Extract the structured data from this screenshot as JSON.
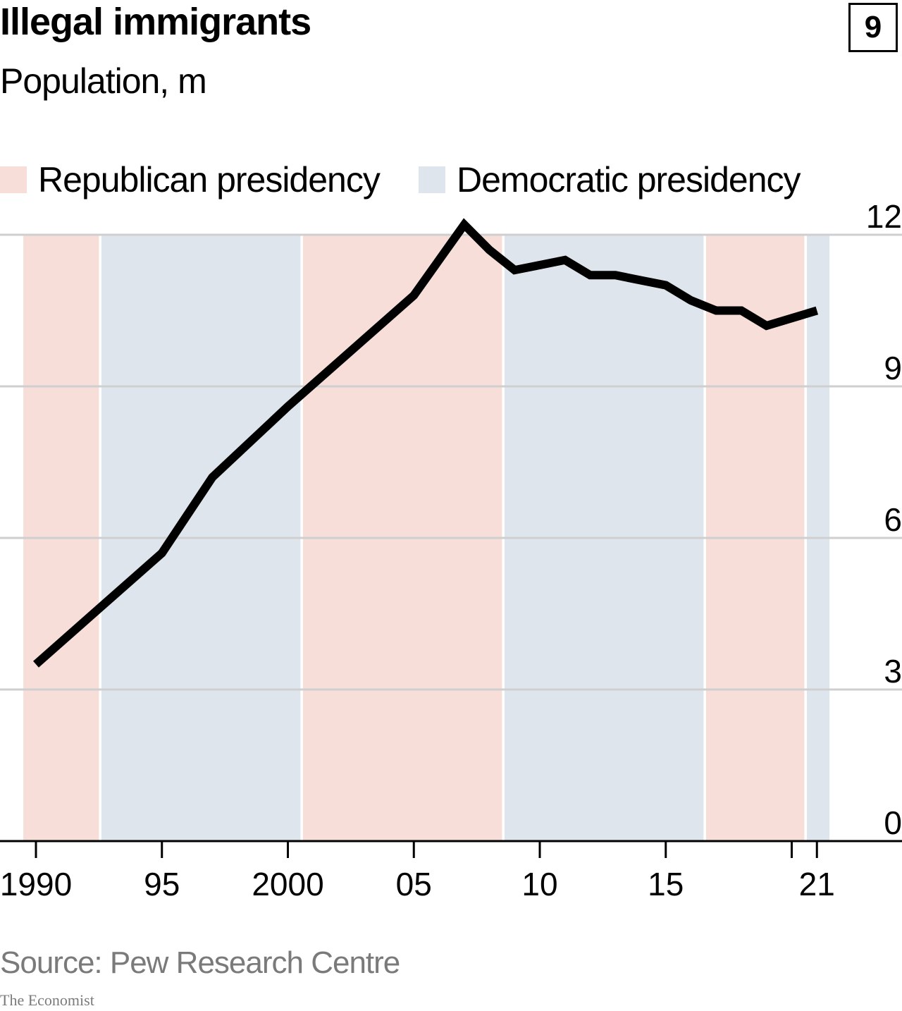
{
  "header": {
    "title": "Illegal immigrants",
    "subtitle": "Population, m",
    "badge": "9"
  },
  "legend": [
    {
      "label": "Republican presidency",
      "color": "#f8ded9"
    },
    {
      "label": "Democratic presidency",
      "color": "#dfe5ec"
    }
  ],
  "footer": {
    "source": "Source: Pew Research Centre",
    "brand": "The Economist"
  },
  "chart_data": {
    "type": "line",
    "title": "Illegal immigrants",
    "subtitle": "Population, m",
    "xlim": [
      1989.5,
      1992.4
    ],
    "x_range": [
      1989.5,
      2021.5
    ],
    "ylim": [
      0,
      12
    ],
    "y_ticks": [
      "0",
      "3",
      "6",
      "9",
      "12"
    ],
    "y_tick_values": [
      0,
      3,
      6,
      9,
      12
    ],
    "x_tick_values": [
      1990,
      1995,
      2000,
      2005,
      2010,
      2015,
      2021
    ],
    "x_tick_labels": [
      "1990",
      "95",
      "2000",
      "05",
      "10",
      "15",
      "21"
    ],
    "x_minor_ticks": [
      2020
    ],
    "grid": true,
    "legend_position": "top-left",
    "line_color": "#000000",
    "presidencies": [
      {
        "party": "Republican",
        "start": 1989.5,
        "end": 1992.5
      },
      {
        "party": "Democratic",
        "start": 1992.6,
        "end": 2000.5
      },
      {
        "party": "Republican",
        "start": 2000.6,
        "end": 2008.5
      },
      {
        "party": "Democratic",
        "start": 2008.6,
        "end": 2016.5
      },
      {
        "party": "Republican",
        "start": 2016.6,
        "end": 2020.5
      },
      {
        "party": "Democratic",
        "start": 2020.6,
        "end": 2021.5
      }
    ],
    "series": [
      {
        "x": [
          1990,
          1995,
          1997,
          2000,
          2005,
          2006,
          2007,
          2008,
          2009,
          2010,
          2011,
          2012,
          2013,
          2014,
          2015,
          2016,
          2017,
          2018,
          2019,
          2021
        ],
        "values": [
          3.5,
          5.7,
          7.2,
          8.6,
          10.8,
          11.5,
          12.2,
          11.7,
          11.3,
          11.4,
          11.5,
          11.2,
          11.2,
          11.1,
          11.0,
          10.7,
          10.5,
          10.5,
          10.2,
          10.5
        ]
      }
    ]
  }
}
